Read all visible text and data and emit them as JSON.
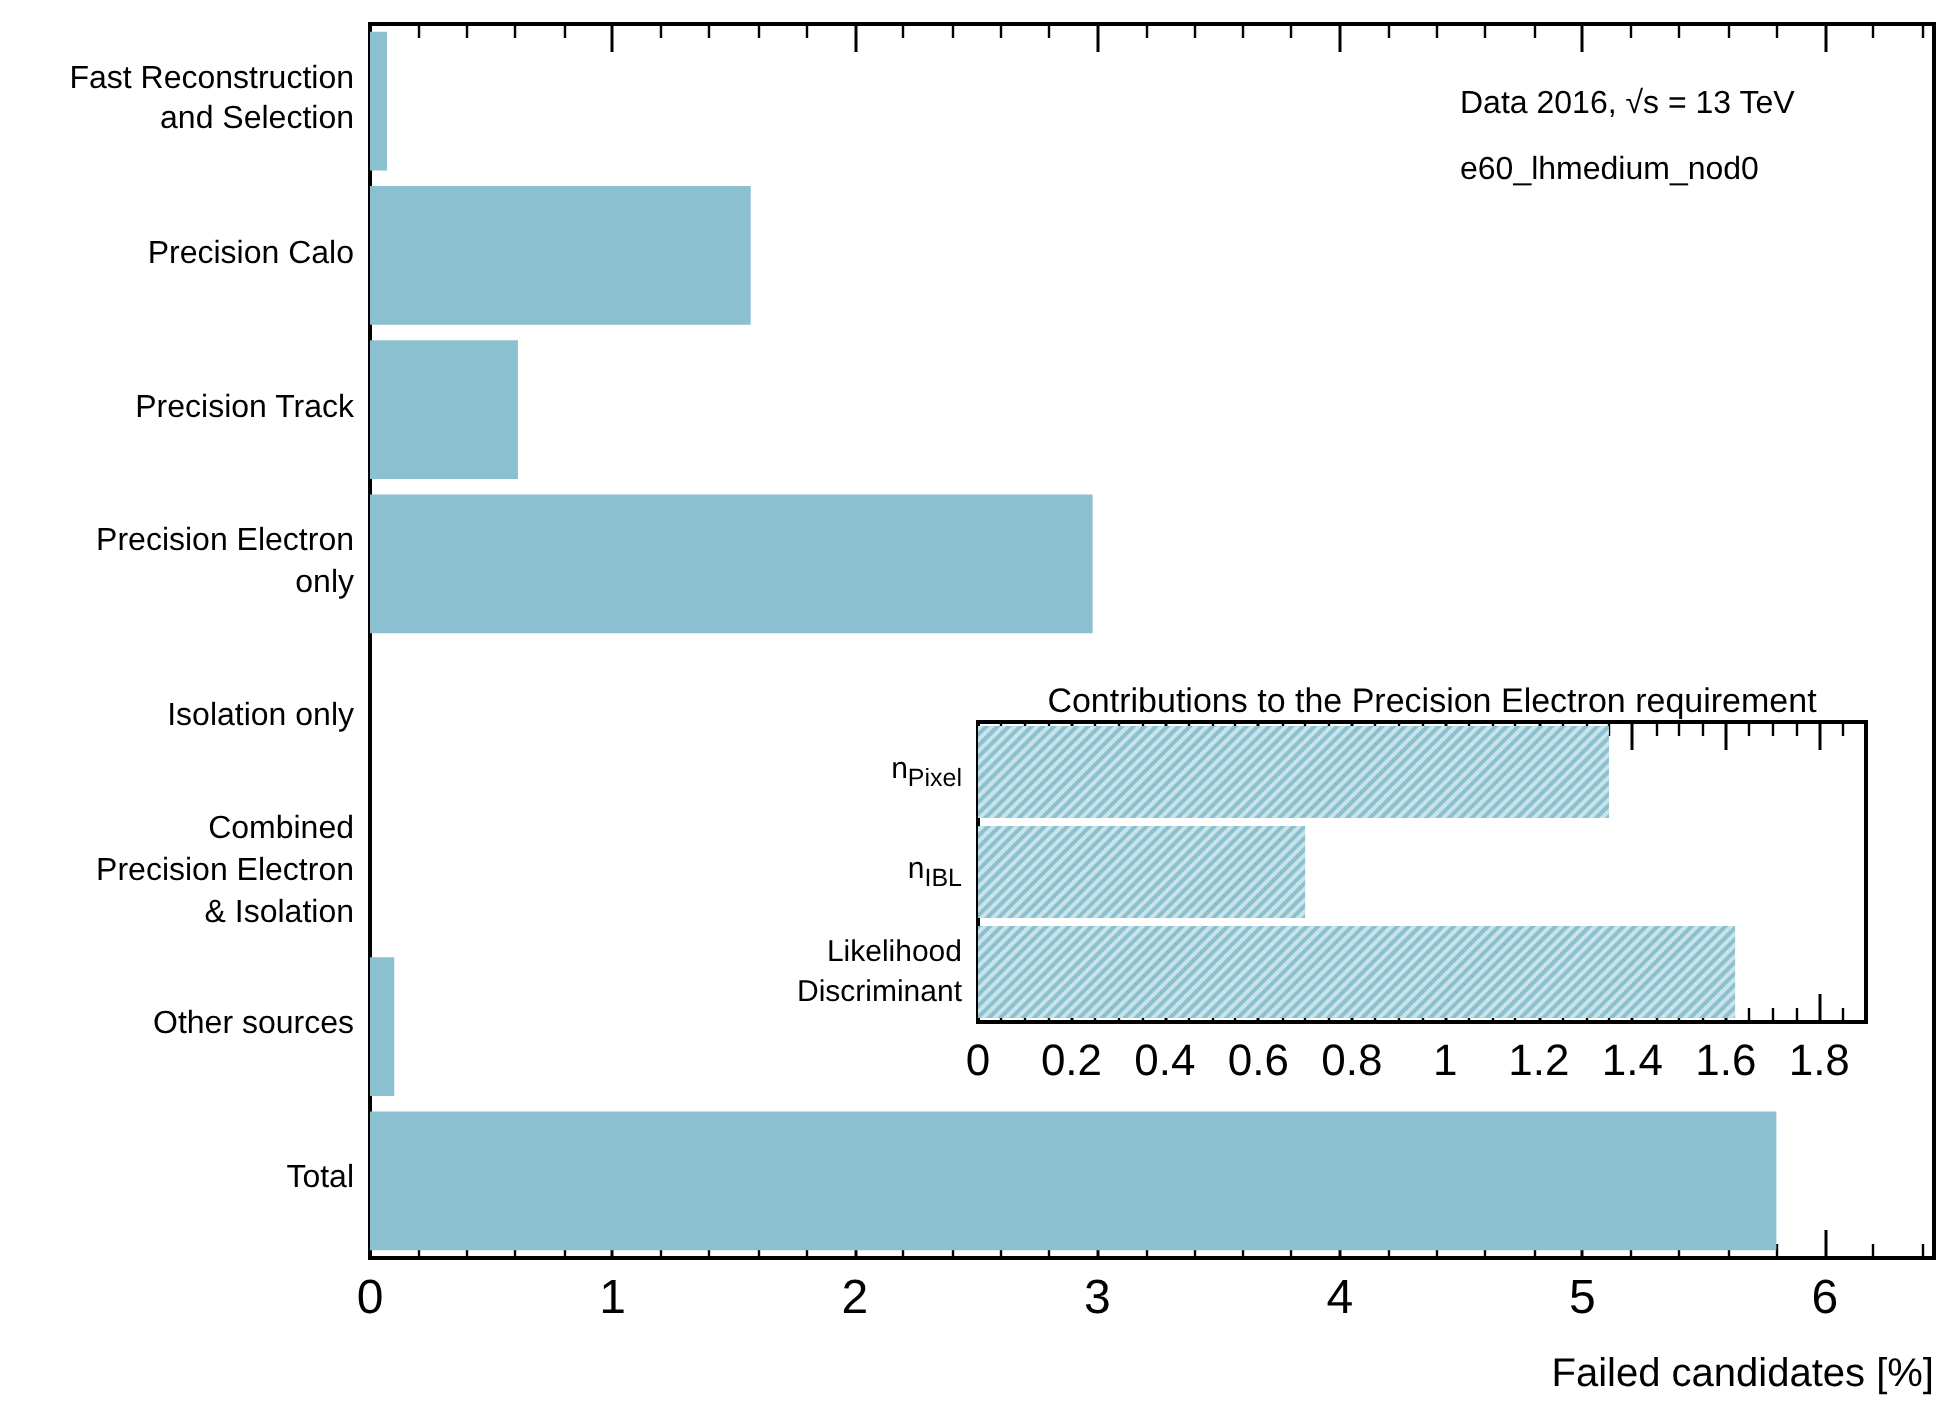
{
  "chart_data": [
    {
      "type": "bar",
      "orientation": "horizontal",
      "xlabel": "Failed candidates [%]",
      "categories": [
        "Fast Reconstruction\nand Selection",
        "Precision Calo",
        "Precision Track",
        "Precision Electron\nonly",
        "Isolation only",
        "Combined\nPrecision Electron\n& Isolation",
        "Other sources",
        "Total"
      ],
      "values": [
        0.07,
        1.57,
        0.61,
        2.98,
        0,
        0,
        0.1,
        5.8
      ],
      "color": "#8ac0cf",
      "xlim": [
        0,
        6.45
      ],
      "xticks": [
        0,
        1,
        2,
        3,
        4,
        5,
        6
      ],
      "annotations": [
        "Data 2016, √s = 13 TeV",
        "e60_lhmedium_nod0"
      ]
    },
    {
      "type": "bar",
      "orientation": "horizontal",
      "title": "Contributions to the Precision Electron requirement",
      "categories": [
        "n$_{Pixel}$",
        "n$_{IBL}$",
        "Likelihood\nDiscriminant"
      ],
      "values": [
        1.35,
        0.7,
        1.62
      ],
      "color": "#8ac0cf",
      "xlim": [
        0,
        1.9
      ],
      "xticks": [
        0,
        0.2,
        0.4,
        0.6,
        0.8,
        1,
        1.2,
        1.4,
        1.6,
        1.8
      ]
    }
  ]
}
